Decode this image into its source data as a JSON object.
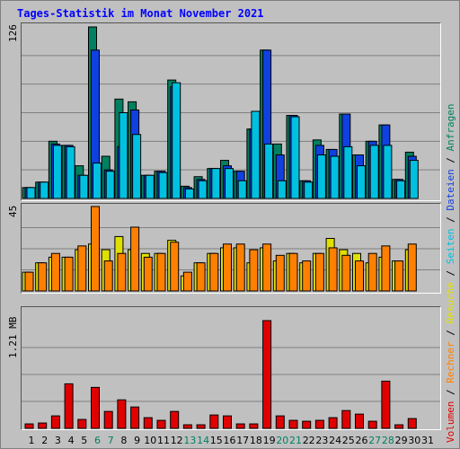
{
  "title": "Tages-Statistik im Monat November 2021",
  "legend": [
    {
      "label": "Volumen",
      "color": "#e00000"
    },
    {
      "label": "Rechner",
      "color": "#ff8000"
    },
    {
      "label": "Besuche",
      "color": "#e0e000"
    },
    {
      "label": "Seiten",
      "color": "#00c0e0"
    },
    {
      "label": "Dateien",
      "color": "#1040e0"
    },
    {
      "label": "Anfragen",
      "color": "#008060"
    }
  ],
  "separator": "/",
  "weekend_color": "#008060",
  "chart_data": [
    {
      "type": "bar",
      "ymax_label": "126",
      "ylim": [
        0,
        126
      ],
      "x": [
        1,
        2,
        3,
        4,
        5,
        6,
        7,
        8,
        9,
        10,
        11,
        12,
        13,
        14,
        15,
        16,
        17,
        18,
        19,
        20,
        21,
        22,
        23,
        24,
        25,
        26,
        27,
        28,
        29,
        30,
        31
      ],
      "series": [
        {
          "name": "Anfragen",
          "color": "#008060",
          "values": [
            8,
            12,
            42,
            39,
            24,
            126,
            31,
            73,
            71,
            17,
            20,
            87,
            9,
            16,
            22,
            28,
            20,
            51,
            109,
            40,
            61,
            13,
            43,
            36,
            62,
            32,
            42,
            54,
            14,
            34,
            0
          ]
        },
        {
          "name": "Dateien",
          "color": "#1040e0",
          "values": [
            8,
            12,
            40,
            39,
            17,
            109,
            21,
            38,
            65,
            17,
            20,
            82,
            8,
            14,
            22,
            24,
            20,
            51,
            109,
            32,
            61,
            13,
            39,
            36,
            62,
            32,
            42,
            54,
            14,
            31,
            0
          ]
        },
        {
          "name": "Seiten",
          "color": "#00c0e0",
          "values": [
            8,
            12,
            39,
            38,
            17,
            26,
            20,
            63,
            47,
            17,
            19,
            85,
            7,
            13,
            22,
            22,
            13,
            64,
            40,
            13,
            60,
            12,
            32,
            31,
            38,
            24,
            39,
            39,
            13,
            28,
            0
          ]
        }
      ]
    },
    {
      "type": "bar",
      "ymax_label": "45",
      "ylim": [
        0,
        45
      ],
      "x": [
        1,
        2,
        3,
        4,
        5,
        6,
        7,
        8,
        9,
        10,
        11,
        12,
        13,
        14,
        15,
        16,
        17,
        18,
        19,
        20,
        21,
        22,
        23,
        24,
        25,
        26,
        27,
        28,
        29,
        30,
        31
      ],
      "series": [
        {
          "name": "Besuche",
          "color": "#e0e000",
          "values": [
            10,
            15,
            18,
            18,
            22,
            25,
            22,
            29,
            22,
            20,
            20,
            27,
            8,
            15,
            20,
            23,
            23,
            15,
            23,
            16,
            20,
            15,
            20,
            28,
            22,
            20,
            15,
            18,
            16,
            22,
            0
          ]
        },
        {
          "name": "Rechner",
          "color": "#ff8000",
          "values": [
            10,
            15,
            20,
            18,
            24,
            45,
            16,
            20,
            34,
            18,
            20,
            26,
            10,
            15,
            20,
            25,
            25,
            22,
            25,
            19,
            20,
            16,
            20,
            23,
            19,
            16,
            20,
            24,
            16,
            25,
            0
          ]
        }
      ]
    },
    {
      "type": "bar",
      "ymax_label": "1.21 MB",
      "ylim": [
        0,
        1.21
      ],
      "x": [
        1,
        2,
        3,
        4,
        5,
        6,
        7,
        8,
        9,
        10,
        11,
        12,
        13,
        14,
        15,
        16,
        17,
        18,
        19,
        20,
        21,
        22,
        23,
        24,
        25,
        26,
        27,
        28,
        29,
        30,
        31
      ],
      "series": [
        {
          "name": "Volumen",
          "color": "#e00000",
          "values": [
            0.05,
            0.06,
            0.14,
            0.5,
            0.1,
            0.46,
            0.19,
            0.32,
            0.24,
            0.12,
            0.09,
            0.19,
            0.04,
            0.04,
            0.15,
            0.14,
            0.05,
            0.05,
            1.21,
            0.14,
            0.09,
            0.08,
            0.09,
            0.12,
            0.2,
            0.16,
            0.08,
            0.53,
            0.04,
            0.11,
            0.0
          ]
        }
      ]
    }
  ],
  "days": [
    "1",
    "2",
    "3",
    "4",
    "5",
    "6",
    "7",
    "8",
    "9",
    "10",
    "11",
    "12",
    "13",
    "14",
    "15",
    "16",
    "17",
    "18",
    "19",
    "20",
    "21",
    "22",
    "23",
    "24",
    "25",
    "26",
    "27",
    "28",
    "29",
    "30",
    "31"
  ],
  "weekend_days": [
    6,
    7,
    13,
    14,
    20,
    21,
    27,
    28
  ]
}
